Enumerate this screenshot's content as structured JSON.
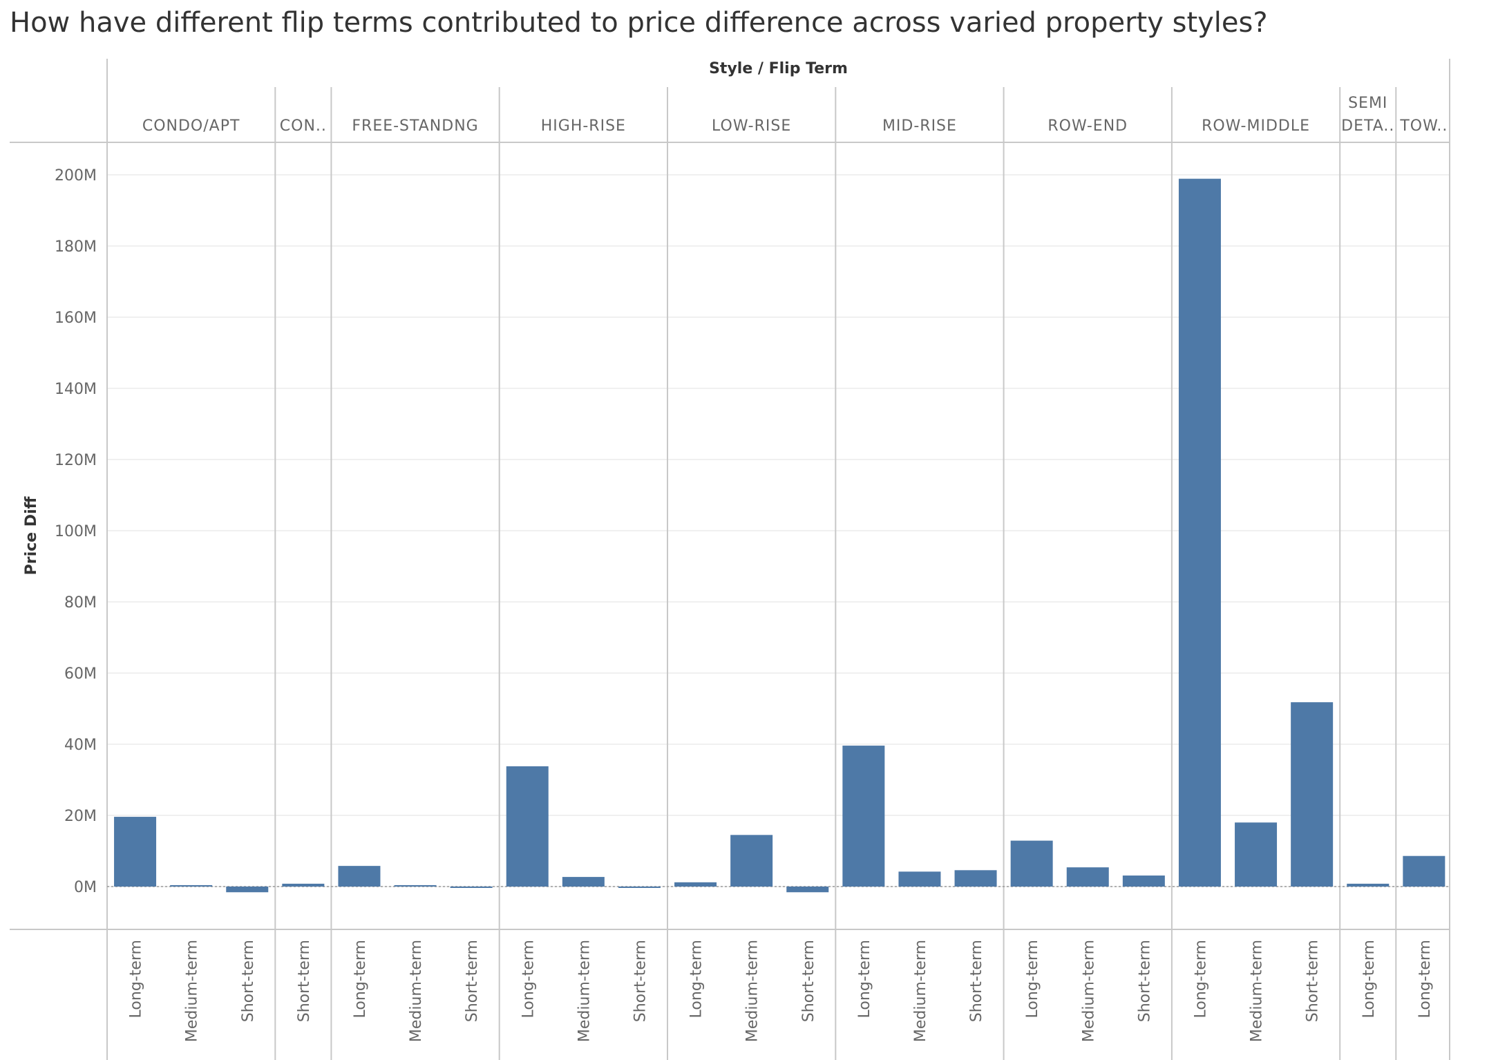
{
  "title": "How have different flip terms contributed to price difference across varied property styles?",
  "chart_data": {
    "type": "bar",
    "title": "How have different flip terms contributed to price difference across varied property styles?",
    "header_label": "Style  /  Flip Term",
    "ylabel": "Price Diff",
    "ylim": [
      -12,
      210
    ],
    "y_ticks": [
      {
        "value": 0,
        "label": "0M"
      },
      {
        "value": 20,
        "label": "20M"
      },
      {
        "value": 40,
        "label": "40M"
      },
      {
        "value": 60,
        "label": "60M"
      },
      {
        "value": 80,
        "label": "80M"
      },
      {
        "value": 100,
        "label": "100M"
      },
      {
        "value": 120,
        "label": "120M"
      },
      {
        "value": 140,
        "label": "140M"
      },
      {
        "value": 160,
        "label": "160M"
      },
      {
        "value": 180,
        "label": "180M"
      },
      {
        "value": 200,
        "label": "200M"
      }
    ],
    "groups": [
      {
        "style": "CONDO/APT",
        "label_lines": [
          "CONDO/APT"
        ],
        "bars": [
          {
            "term": "Long-term",
            "value": 19.6
          },
          {
            "term": "Medium-term",
            "value": 0.4
          },
          {
            "term": "Short-term",
            "value": -1.6
          }
        ]
      },
      {
        "style": "CON..",
        "label_lines": [
          "CON.."
        ],
        "bars": [
          {
            "term": "Short-term",
            "value": 0.8
          }
        ]
      },
      {
        "style": "FREE-STANDNG",
        "label_lines": [
          "FREE-STANDNG"
        ],
        "bars": [
          {
            "term": "Long-term",
            "value": 5.8
          },
          {
            "term": "Medium-term",
            "value": 0.4
          },
          {
            "term": "Short-term",
            "value": -0.3
          }
        ]
      },
      {
        "style": "HIGH-RISE",
        "label_lines": [
          "HIGH-RISE"
        ],
        "bars": [
          {
            "term": "Long-term",
            "value": 33.8
          },
          {
            "term": "Medium-term",
            "value": 2.7
          },
          {
            "term": "Short-term",
            "value": -0.3
          }
        ]
      },
      {
        "style": "LOW-RISE",
        "label_lines": [
          "LOW-RISE"
        ],
        "bars": [
          {
            "term": "Long-term",
            "value": 1.2
          },
          {
            "term": "Medium-term",
            "value": 14.5
          },
          {
            "term": "Short-term",
            "value": -1.6
          }
        ]
      },
      {
        "style": "MID-RISE",
        "label_lines": [
          "MID-RISE"
        ],
        "bars": [
          {
            "term": "Long-term",
            "value": 39.6
          },
          {
            "term": "Medium-term",
            "value": 4.2
          },
          {
            "term": "Short-term",
            "value": 4.6
          }
        ]
      },
      {
        "style": "ROW-END",
        "label_lines": [
          "ROW-END"
        ],
        "bars": [
          {
            "term": "Long-term",
            "value": 12.9
          },
          {
            "term": "Medium-term",
            "value": 5.4
          },
          {
            "term": "Short-term",
            "value": 3.1
          }
        ]
      },
      {
        "style": "ROW-MIDDLE",
        "label_lines": [
          "ROW-MIDDLE"
        ],
        "bars": [
          {
            "term": "Long-term",
            "value": 198.9
          },
          {
            "term": "Medium-term",
            "value": 18.0
          },
          {
            "term": "Short-term",
            "value": 51.8
          }
        ]
      },
      {
        "style": "SEMI DETA..",
        "label_lines": [
          "SEMI",
          "DETA.."
        ],
        "bars": [
          {
            "term": "Long-term",
            "value": 0.8
          }
        ]
      },
      {
        "style": "TOW..",
        "label_lines": [
          "TOW.."
        ],
        "bars": [
          {
            "term": "Long-term",
            "value": 8.6
          }
        ]
      }
    ],
    "colors": {
      "bar": "#4e79a7",
      "grid": "#ebebeb",
      "divider": "#c8c8c8",
      "text": "#666666",
      "header_text": "#333333",
      "zero_line": "#999999"
    },
    "grid": true,
    "legend": "none"
  }
}
